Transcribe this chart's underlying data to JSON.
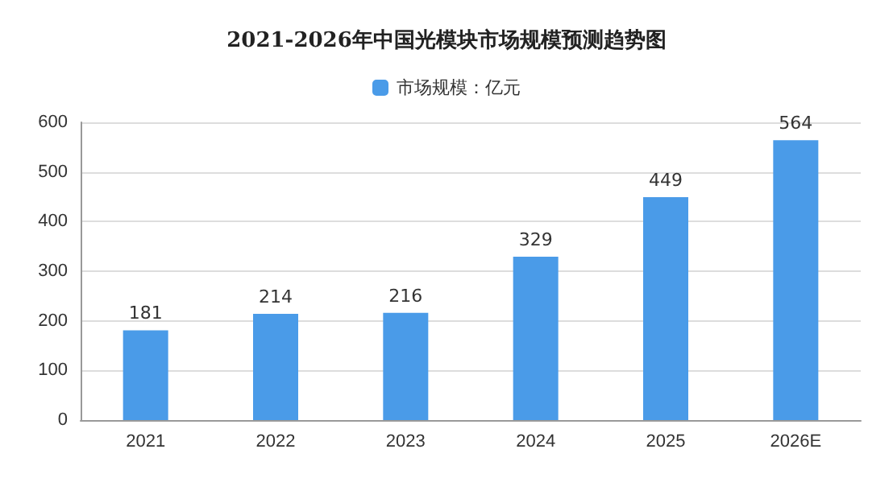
{
  "chart_data": {
    "type": "bar",
    "title": "2021-2026年中国光模块市场规模预测趋势图",
    "categories": [
      "2021",
      "2022",
      "2023",
      "2024",
      "2025",
      "2026E"
    ],
    "series": [
      {
        "name": "市场规模：亿元",
        "color": "#4a9be8",
        "values": [
          181,
          214,
          216,
          329,
          449,
          564
        ]
      }
    ],
    "ylim": [
      0,
      600
    ],
    "yticks": [
      0,
      100,
      200,
      300,
      400,
      500,
      600
    ],
    "grid": "y",
    "legend": "top",
    "data_labels": true
  }
}
